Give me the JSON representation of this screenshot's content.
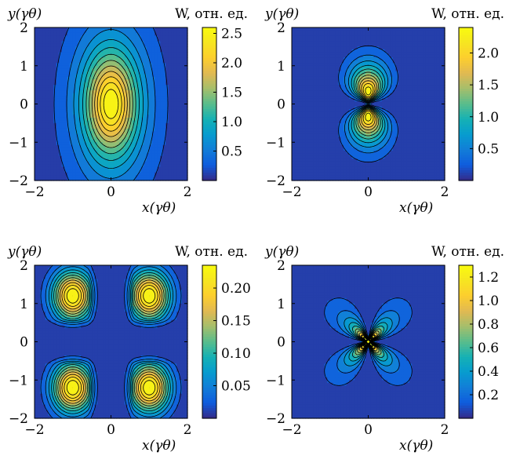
{
  "chart_data": [
    {
      "type": "heatmap",
      "xlabel": "x(γθ)",
      "ylabel": "y(γθ)",
      "colorbar_label": "W, отн. ед.",
      "xlim": [
        -2,
        2
      ],
      "ylim": [
        -2,
        2
      ],
      "x_ticks": [
        "−2",
        "0",
        "2"
      ],
      "y_ticks": [
        "2",
        "1",
        "0",
        "−1",
        "−2"
      ],
      "colorbar_ticks": [
        "2.5",
        "2.0",
        "1.5",
        "1.0",
        "0.5"
      ],
      "colorbar_range": [
        0,
        2.6
      ],
      "contour_levels": 13,
      "pattern": "single central lobe elongated along y, peak at origin",
      "peak_value": 2.6
    },
    {
      "type": "heatmap",
      "xlabel": "x(γθ)",
      "ylabel": "y(γθ)",
      "colorbar_label": "W, отн. ед.",
      "xlim": [
        -2,
        2
      ],
      "ylim": [
        -2,
        2
      ],
      "x_ticks": [
        "−2",
        "0",
        "2"
      ],
      "y_ticks": [
        "2",
        "1",
        "0",
        "−1",
        "−2"
      ],
      "colorbar_ticks": [
        "2.0",
        "1.5",
        "1.0",
        "0.5"
      ],
      "colorbar_range": [
        0,
        2.4
      ],
      "contour_levels": 12,
      "pattern": "two lobes along y axis with node at origin",
      "peak_value": 2.4
    },
    {
      "type": "heatmap",
      "xlabel": "x(γθ)",
      "ylabel": "y(γθ)",
      "colorbar_label": "W, отн. ед.",
      "xlim": [
        -2,
        2
      ],
      "ylim": [
        -2,
        2
      ],
      "x_ticks": [
        "−2",
        "0",
        "2"
      ],
      "y_ticks": [
        "2",
        "1",
        "0",
        "−1",
        "−2"
      ],
      "colorbar_ticks": [
        "0.20",
        "0.15",
        "0.10",
        "0.05"
      ],
      "colorbar_range": [
        0,
        0.235
      ],
      "contour_levels": 12,
      "pattern": "four lobes centred near (±1, ±1.2)",
      "peak_value": 0.235
    },
    {
      "type": "heatmap",
      "xlabel": "x(γθ)",
      "ylabel": "y(γθ)",
      "colorbar_label": "W, отн. ед.",
      "xlim": [
        -2,
        2
      ],
      "ylim": [
        -2,
        2
      ],
      "x_ticks": [
        "−2",
        "0",
        "2"
      ],
      "y_ticks": [
        "2",
        "1",
        "0",
        "−1",
        "−2"
      ],
      "colorbar_ticks": [
        "1.2",
        "1.0",
        "0.8",
        "0.6",
        "0.4",
        "0.2"
      ],
      "colorbar_range": [
        0,
        1.3
      ],
      "contour_levels": 12,
      "pattern": "four diagonal petals meeting at origin",
      "peak_value": 1.3
    }
  ]
}
